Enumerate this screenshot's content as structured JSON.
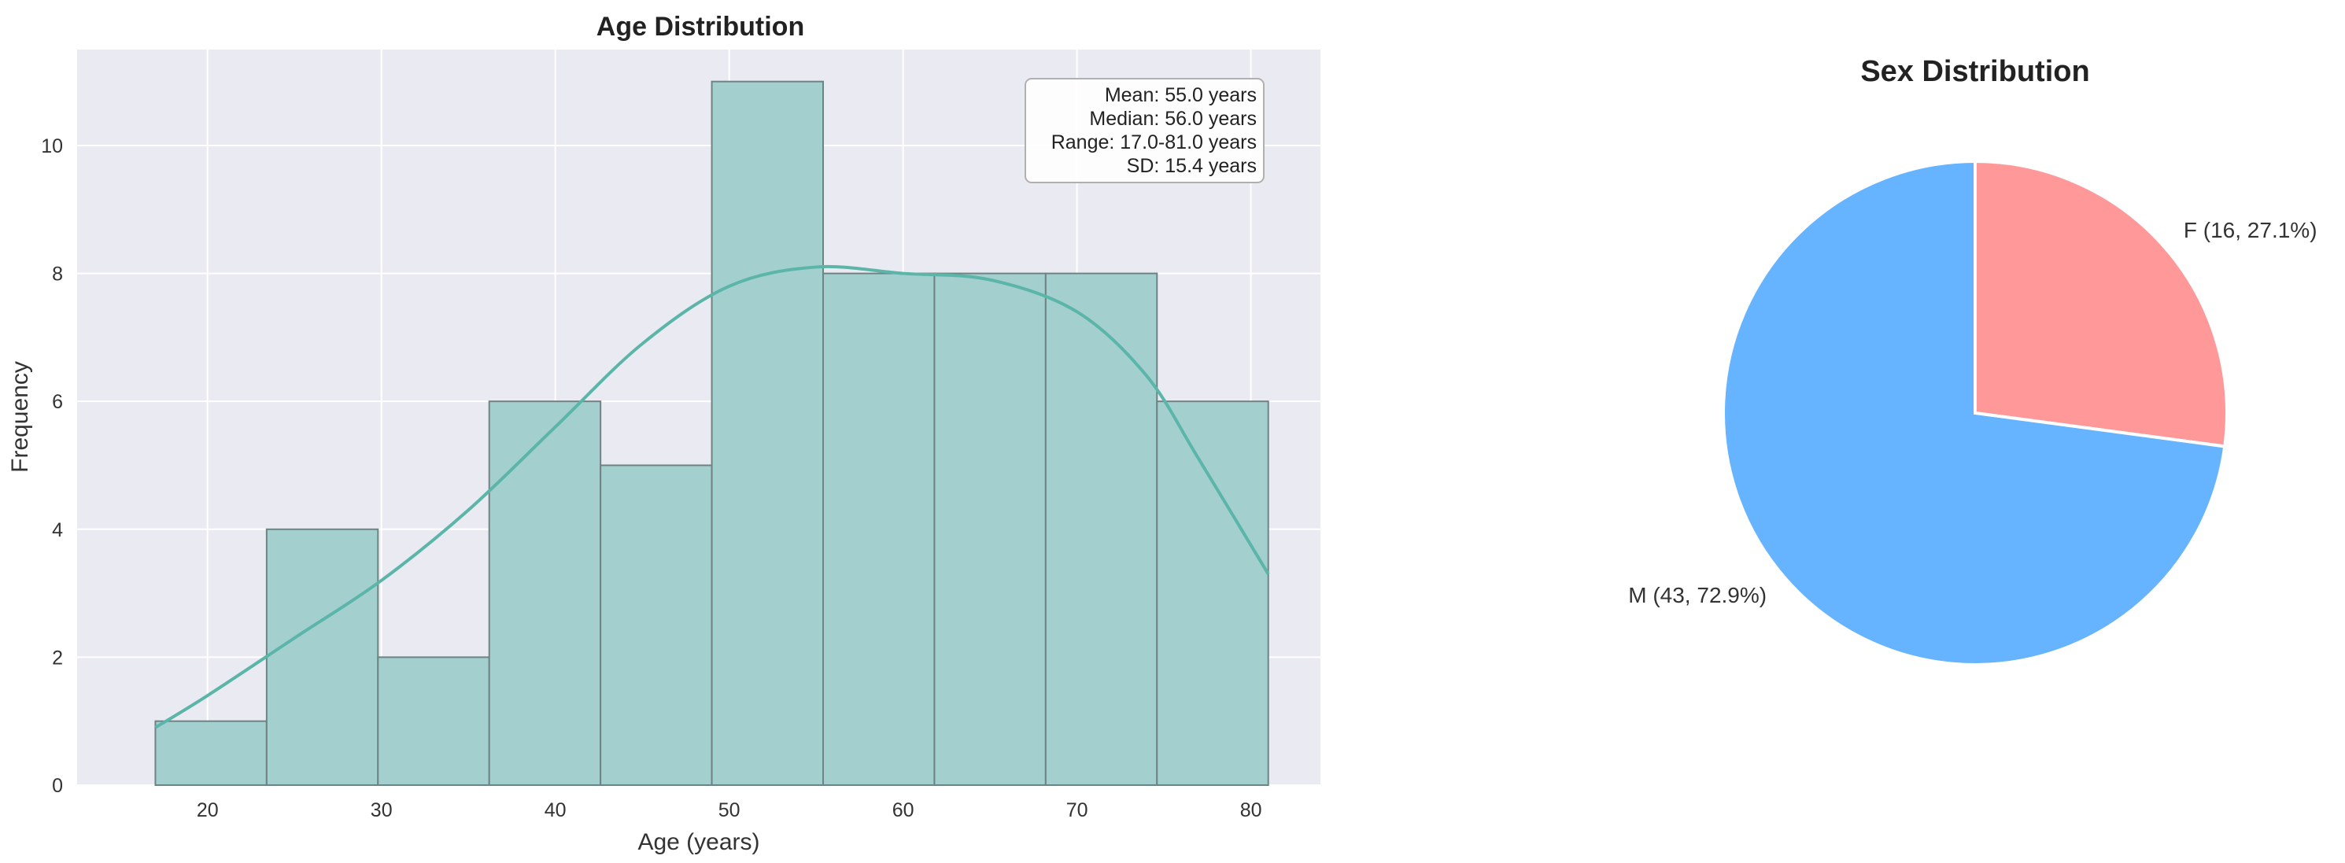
{
  "chart_data": [
    {
      "type": "bar",
      "title": "Age Distribution",
      "xlabel": "Age (years)",
      "ylabel": "Frequency",
      "bin_edges": [
        17,
        23.4,
        29.8,
        36.2,
        42.6,
        49,
        55.4,
        61.8,
        68.2,
        74.6,
        81
      ],
      "values": [
        1,
        4,
        2,
        6,
        5,
        11,
        8,
        8,
        8,
        6
      ],
      "xlim": [
        12.5,
        84
      ],
      "ylim": [
        0,
        11.5
      ],
      "xticks": [
        20,
        30,
        40,
        50,
        60,
        70,
        80
      ],
      "yticks": [
        0,
        2,
        4,
        6,
        8,
        10
      ],
      "kde": {
        "x": [
          17,
          20,
          25,
          30,
          35,
          40,
          45,
          50,
          55,
          60,
          65,
          70,
          74,
          77,
          81
        ],
        "y": [
          0.9,
          1.4,
          2.3,
          3.2,
          4.3,
          5.6,
          6.9,
          7.8,
          8.1,
          8.0,
          7.9,
          7.4,
          6.4,
          5.1,
          3.3
        ]
      },
      "grid": true,
      "bar_color": "#a3cfcf",
      "kde_color": "#5bb5a8",
      "stats": {
        "mean": "Mean: 55.0 years",
        "median": "Median: 56.0 years",
        "range": "Range: 17.0-81.0 years",
        "sd": "SD: 15.4 years"
      },
      "stats_placement": "top-right"
    },
    {
      "type": "pie",
      "title": "Sex Distribution",
      "slices": [
        {
          "label": "F (16, 27.1%)",
          "value": 16,
          "color": "#ff9999"
        },
        {
          "label": "M (43, 72.9%)",
          "value": 43,
          "color": "#66b3ff"
        }
      ]
    }
  ]
}
